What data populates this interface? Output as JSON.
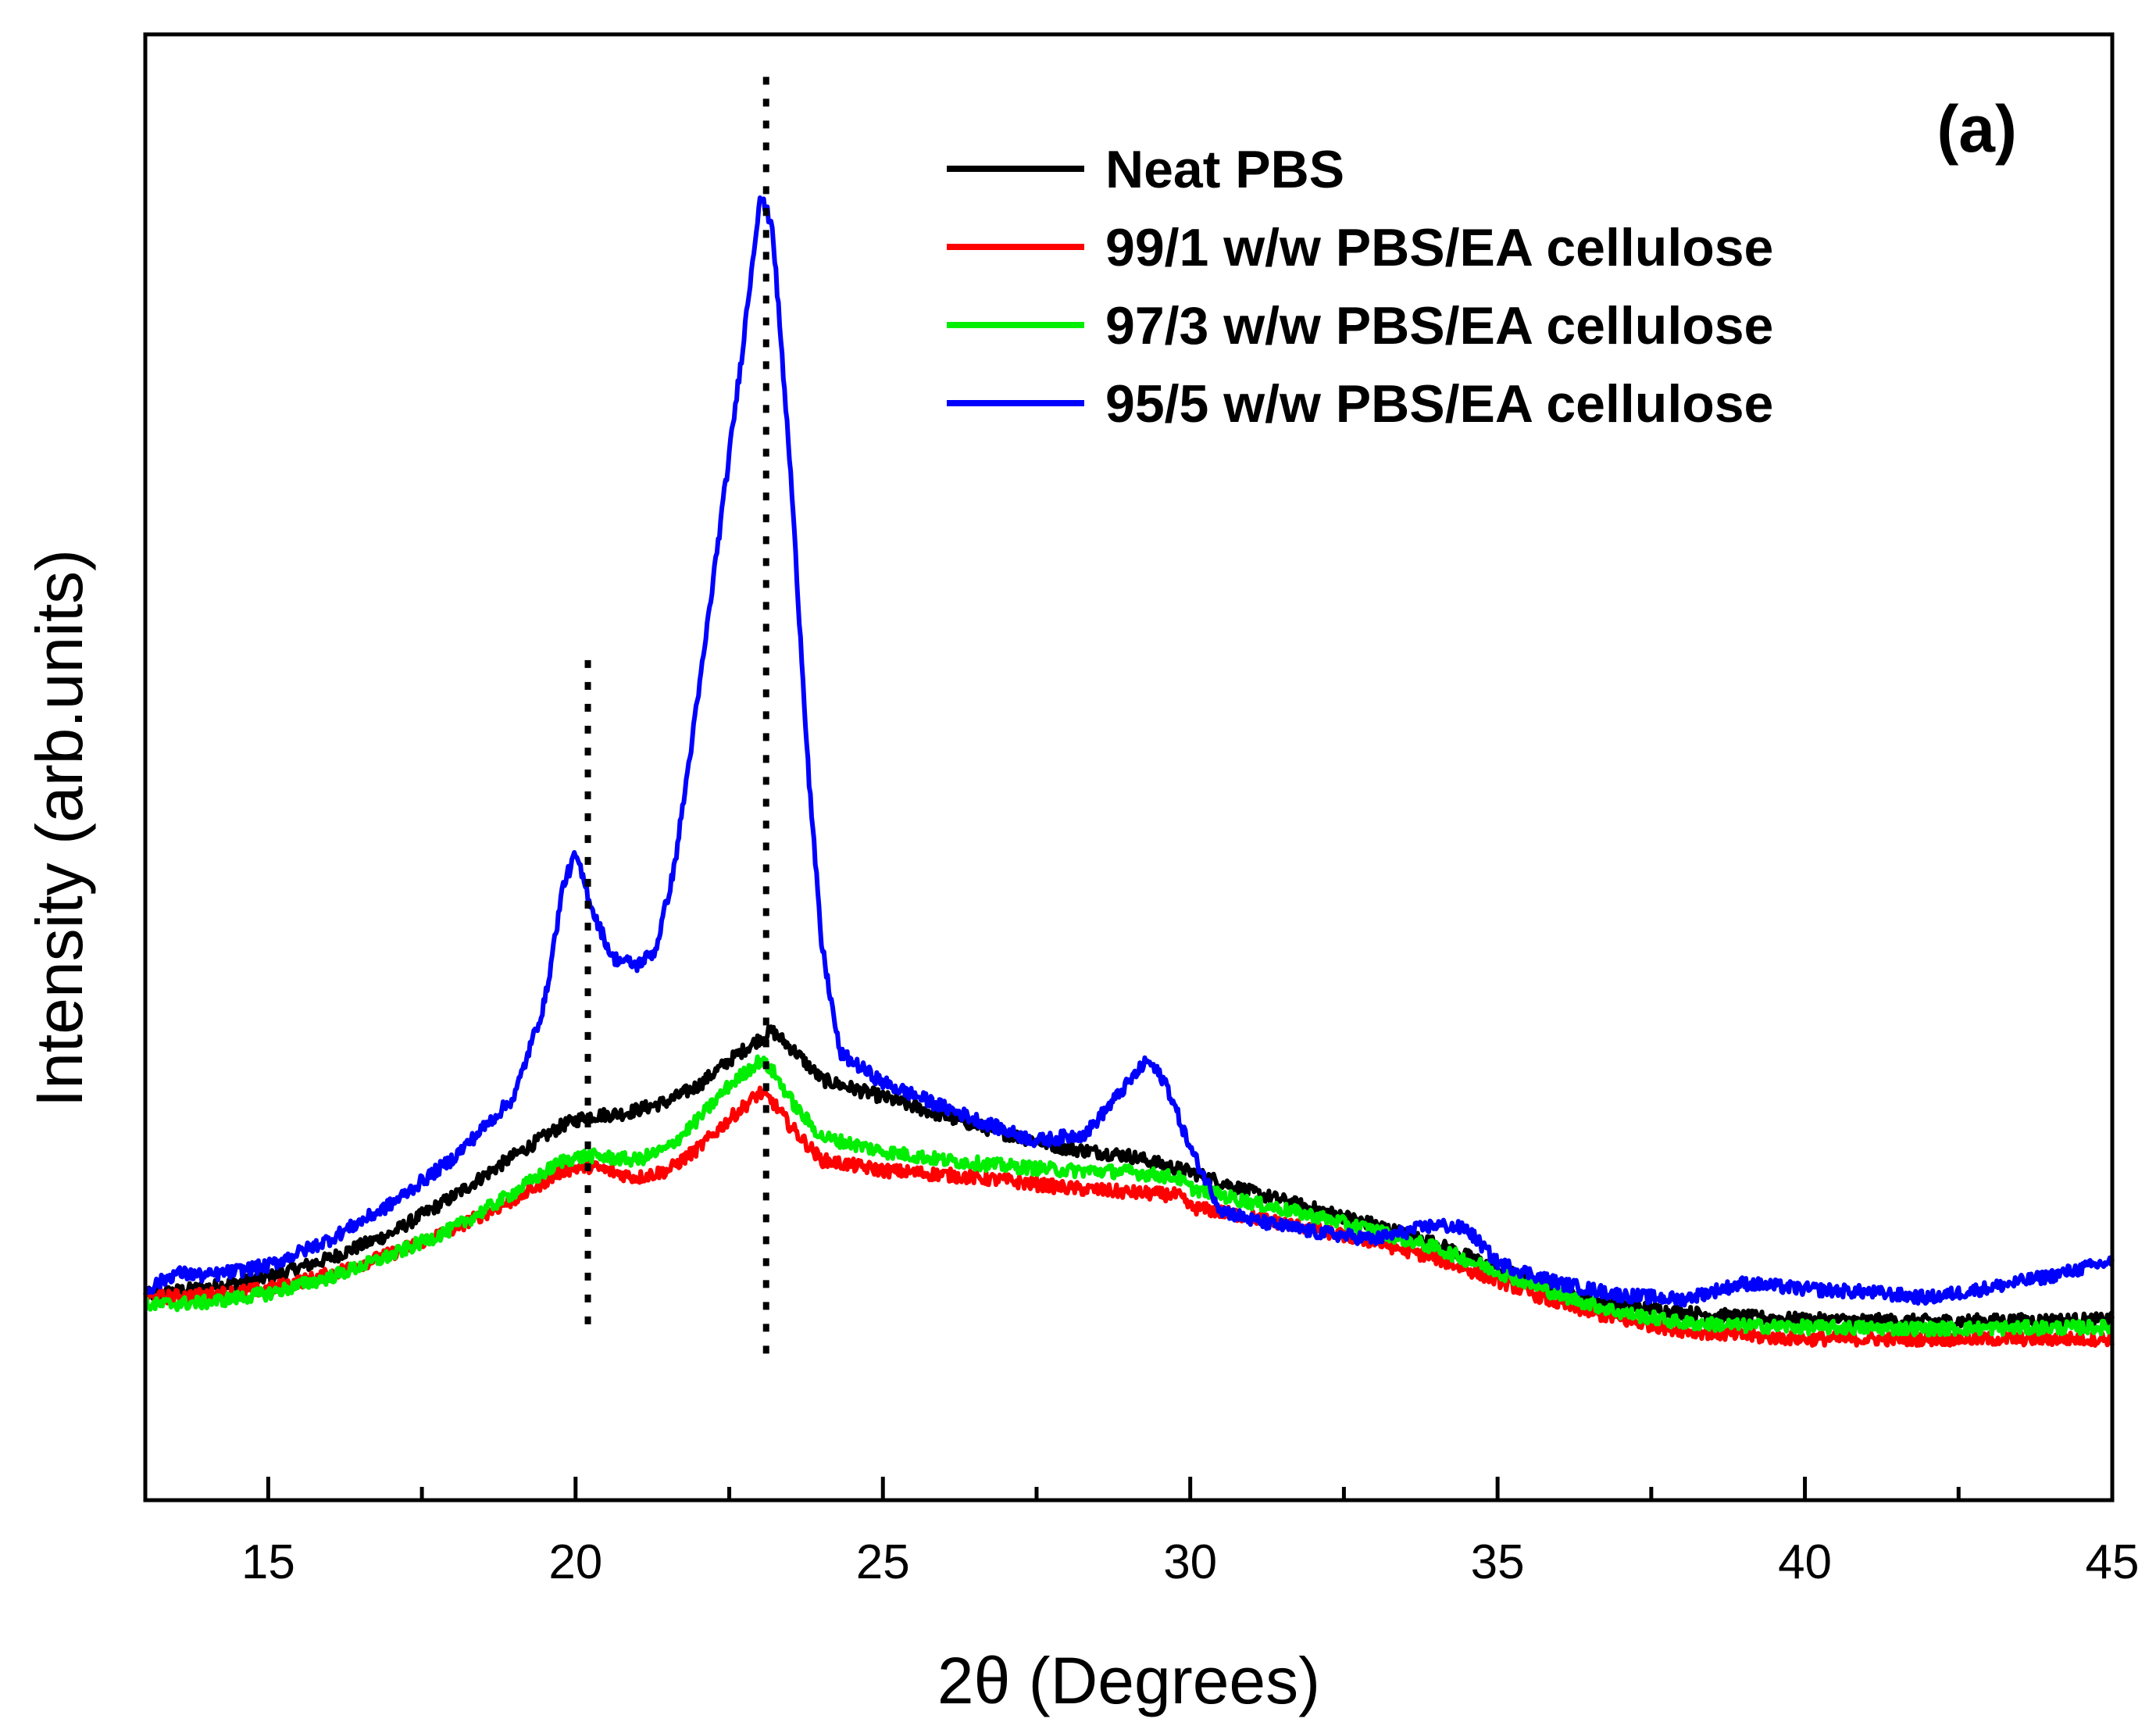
{
  "chart_data": {
    "type": "line",
    "title": "",
    "panel_label": "(a)",
    "xlabel": "2θ (Degrees)",
    "ylabel": "Intensity (arb.units)",
    "xlim": [
      13,
      45
    ],
    "ylim": [
      0,
      100
    ],
    "x_ticks": [
      15,
      20,
      25,
      30,
      35,
      40,
      45
    ],
    "x_minor_ticks": [
      17.5,
      22.5,
      27.5,
      32.5,
      37.5,
      42.5
    ],
    "y_ticks_shown": false,
    "grid": false,
    "legend_position": "top-right",
    "reference_lines": [
      {
        "x": 20.2,
        "y_from": 12,
        "y_to": 58,
        "style": "dotted"
      },
      {
        "x": 23.1,
        "y_from": 10,
        "y_to": 98,
        "style": "dotted"
      }
    ],
    "series": [
      {
        "name": "Neat PBS",
        "color": "#000000",
        "points": [
          [
            13,
            14
          ],
          [
            14,
            14.5
          ],
          [
            15,
            15.2
          ],
          [
            16,
            16.5
          ],
          [
            17,
            18.2
          ],
          [
            18,
            20.7
          ],
          [
            19,
            23.5
          ],
          [
            19.8,
            25.6
          ],
          [
            20.2,
            26.2
          ],
          [
            20.8,
            26.4
          ],
          [
            21.5,
            27.2
          ],
          [
            22,
            28.3
          ],
          [
            22.5,
            30
          ],
          [
            23,
            31.5
          ],
          [
            23.2,
            32
          ],
          [
            23.6,
            30.5
          ],
          [
            24,
            28.7
          ],
          [
            25,
            27.5
          ],
          [
            26,
            26.2
          ],
          [
            27,
            25
          ],
          [
            28,
            24
          ],
          [
            29,
            23.5
          ],
          [
            30,
            22.4
          ],
          [
            31,
            21
          ],
          [
            32,
            19.9
          ],
          [
            33,
            18.8
          ],
          [
            34,
            17.5
          ],
          [
            35,
            15.8
          ],
          [
            36,
            14.2
          ],
          [
            37,
            13.3
          ],
          [
            38,
            12.8
          ],
          [
            39,
            12.5
          ],
          [
            40,
            12.3
          ],
          [
            42,
            12.2
          ],
          [
            45,
            12.3
          ]
        ]
      },
      {
        "name": "99/1 w/w PBS/EA cellulose",
        "color": "#ff0000",
        "points": [
          [
            13,
            13.8
          ],
          [
            14,
            14
          ],
          [
            15,
            14.4
          ],
          [
            16,
            15.4
          ],
          [
            17,
            16.8
          ],
          [
            18,
            18.5
          ],
          [
            19,
            20.5
          ],
          [
            19.8,
            22.5
          ],
          [
            20.2,
            22.8
          ],
          [
            21,
            22
          ],
          [
            21.5,
            22.5
          ],
          [
            22,
            24
          ],
          [
            22.5,
            26
          ],
          [
            23,
            27.8
          ],
          [
            23.2,
            27.2
          ],
          [
            23.5,
            25.5
          ],
          [
            24,
            23.2
          ],
          [
            25,
            22.5
          ],
          [
            26,
            22.2
          ],
          [
            27,
            21.8
          ],
          [
            28,
            21.3
          ],
          [
            29,
            21
          ],
          [
            29.8,
            20.8
          ],
          [
            30,
            20
          ],
          [
            31,
            19.3
          ],
          [
            32,
            18.5
          ],
          [
            33,
            17.6
          ],
          [
            34,
            16.5
          ],
          [
            35,
            15
          ],
          [
            36,
            13.4
          ],
          [
            37,
            12.3
          ],
          [
            38,
            11.6
          ],
          [
            39,
            11.2
          ],
          [
            40,
            11
          ],
          [
            42,
            11
          ],
          [
            45,
            11
          ]
        ]
      },
      {
        "name": "97/3 w/w PBS/EA cellulose",
        "color": "#00ee00",
        "points": [
          [
            13,
            13.3
          ],
          [
            14,
            13.5
          ],
          [
            15,
            14.1
          ],
          [
            16,
            15.2
          ],
          [
            17,
            16.7
          ],
          [
            18,
            18.5
          ],
          [
            19,
            21
          ],
          [
            19.8,
            23.2
          ],
          [
            20.2,
            23.5
          ],
          [
            21,
            23.2
          ],
          [
            21.5,
            24
          ],
          [
            22,
            26
          ],
          [
            22.5,
            28.3
          ],
          [
            23,
            30
          ],
          [
            23.2,
            29.3
          ],
          [
            23.6,
            26.7
          ],
          [
            24,
            24.8
          ],
          [
            25,
            23.8
          ],
          [
            26,
            23.2
          ],
          [
            27,
            22.8
          ],
          [
            28,
            22.5
          ],
          [
            29,
            22.4
          ],
          [
            29.8,
            22
          ],
          [
            30,
            21.3
          ],
          [
            31,
            20.3
          ],
          [
            32,
            19.4
          ],
          [
            33,
            18.4
          ],
          [
            34,
            17.2
          ],
          [
            35,
            15.6
          ],
          [
            36,
            14
          ],
          [
            37,
            12.8
          ],
          [
            38,
            12.1
          ],
          [
            39,
            11.9
          ],
          [
            40,
            11.8
          ],
          [
            42,
            11.7
          ],
          [
            45,
            11.8
          ]
        ]
      },
      {
        "name": "95/5 w/w PBS/EA cellulose",
        "color": "#0000ff",
        "points": [
          [
            13,
            14.3
          ],
          [
            13.5,
            15.5
          ],
          [
            14,
            15.3
          ],
          [
            15,
            16
          ],
          [
            16,
            17.8
          ],
          [
            17,
            20.2
          ],
          [
            18,
            23.3
          ],
          [
            19,
            27.5
          ],
          [
            19.5,
            34
          ],
          [
            19.8,
            42
          ],
          [
            20,
            44
          ],
          [
            20.3,
            40
          ],
          [
            20.6,
            37
          ],
          [
            21,
            36.5
          ],
          [
            21.3,
            37.5
          ],
          [
            21.6,
            43
          ],
          [
            22,
            55
          ],
          [
            22.4,
            68
          ],
          [
            22.7,
            78
          ],
          [
            23,
            89
          ],
          [
            23.2,
            87
          ],
          [
            23.5,
            70
          ],
          [
            23.8,
            49
          ],
          [
            24,
            38
          ],
          [
            24.3,
            30.5
          ],
          [
            25,
            28.5
          ],
          [
            26,
            26.8
          ],
          [
            27,
            25.2
          ],
          [
            27.5,
            24.5
          ],
          [
            28.3,
            25
          ],
          [
            29,
            28.5
          ],
          [
            29.3,
            30
          ],
          [
            29.6,
            28.5
          ],
          [
            30,
            24
          ],
          [
            30.5,
            19.8
          ],
          [
            31,
            19.1
          ],
          [
            32,
            18.3
          ],
          [
            33,
            17.8
          ],
          [
            34,
            18.8
          ],
          [
            34.5,
            18.5
          ],
          [
            35,
            16.2
          ],
          [
            36,
            14.8
          ],
          [
            37,
            14
          ],
          [
            38,
            13.7
          ],
          [
            39,
            14.8
          ],
          [
            40,
            14.4
          ],
          [
            41,
            14.2
          ],
          [
            42,
            13.8
          ],
          [
            43,
            14.5
          ],
          [
            44,
            15.3
          ],
          [
            45,
            16.3
          ]
        ]
      }
    ]
  }
}
